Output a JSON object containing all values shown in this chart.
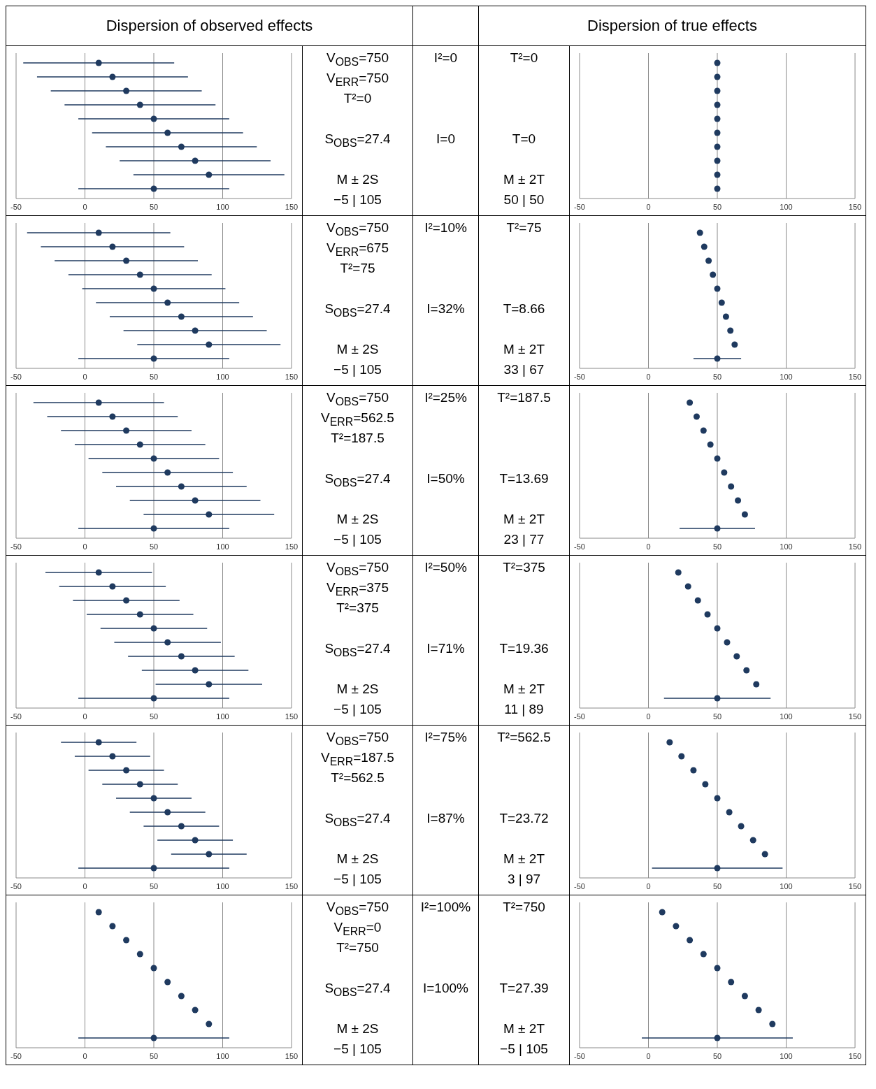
{
  "chart_data": [
    {
      "type": "other",
      "title": "Dispersion of observed effects"
    },
    {
      "type": "other",
      "title": "Dispersion of true effects"
    },
    {
      "type": "scatter",
      "orientation": "horizontal",
      "categories": [
        null,
        null,
        null,
        null,
        null,
        null,
        null,
        null,
        null,
        null
      ],
      "xlim": [
        -50,
        150
      ],
      "xticks": [
        -50,
        0,
        50,
        100,
        150
      ],
      "grid": "x",
      "marker": "circle",
      "tick_labels": "x",
      "series": [
        {
          "color": "#1f3a5f",
          "values": [
            10,
            20,
            30,
            40,
            50,
            60,
            70,
            80,
            90,
            null
          ],
          "errors": [
            54.8,
            54.8,
            54.8,
            54.8,
            54.8,
            54.8,
            54.8,
            54.8,
            54.8,
            null
          ]
        },
        {
          "color": "#1f3a5f",
          "values": [
            null,
            null,
            null,
            null,
            null,
            null,
            null,
            null,
            null,
            50
          ],
          "errors": [
            null,
            null,
            null,
            null,
            null,
            null,
            null,
            null,
            null,
            54.8
          ]
        }
      ]
    },
    {
      "type": "other",
      "annotations": [
        "V$_{OBS}$=750",
        "V$_{ERR}$=750",
        "T²=0",
        "S$_{OBS}$=27.4",
        "M ± 2S",
        "−5 | 105"
      ]
    },
    {
      "type": "other",
      "annotations": [
        "I²=0",
        "I=0"
      ]
    },
    {
      "type": "other",
      "annotations": [
        "T²=0",
        "T=0",
        "M ± 2T",
        "50 | 50"
      ]
    },
    {
      "type": "scatter",
      "orientation": "horizontal",
      "categories": [
        null,
        null,
        null,
        null,
        null,
        null,
        null,
        null,
        null,
        null
      ],
      "xlim": [
        -50,
        150
      ],
      "xticks": [
        -50,
        0,
        50,
        100,
        150
      ],
      "grid": "x",
      "marker": "circle",
      "tick_labels": "x",
      "series": [
        {
          "color": "#1f3a5f",
          "values": [
            50,
            50,
            50,
            50,
            50,
            50,
            50,
            50,
            50,
            null
          ]
        },
        {
          "color": "#1f3a5f",
          "values": [
            null,
            null,
            null,
            null,
            null,
            null,
            null,
            null,
            null,
            50
          ]
        }
      ]
    },
    {
      "type": "scatter",
      "orientation": "horizontal",
      "categories": [
        null,
        null,
        null,
        null,
        null,
        null,
        null,
        null,
        null,
        null
      ],
      "xlim": [
        -50,
        150
      ],
      "xticks": [
        -50,
        0,
        50,
        100,
        150
      ],
      "grid": "x",
      "marker": "circle",
      "tick_labels": "x",
      "series": [
        {
          "color": "#1f3a5f",
          "values": [
            10,
            20,
            30,
            40,
            50,
            60,
            70,
            80,
            90,
            null
          ],
          "errors": [
            52.0,
            52.0,
            52.0,
            52.0,
            52.0,
            52.0,
            52.0,
            52.0,
            52.0,
            null
          ]
        },
        {
          "color": "#1f3a5f",
          "values": [
            null,
            null,
            null,
            null,
            null,
            null,
            null,
            null,
            null,
            50
          ],
          "errors": [
            null,
            null,
            null,
            null,
            null,
            null,
            null,
            null,
            null,
            54.8
          ]
        }
      ]
    },
    {
      "type": "other",
      "annotations": [
        "V$_{OBS}$=750",
        "V$_{ERR}$=675",
        "T²=75",
        "S$_{OBS}$=27.4",
        "M ± 2S",
        "−5 | 105"
      ]
    },
    {
      "type": "other",
      "annotations": [
        "I²=10%",
        "I=32%"
      ]
    },
    {
      "type": "other",
      "annotations": [
        "T²=75",
        "T=8.66",
        "M ± 2T",
        "33 | 67"
      ]
    },
    {
      "type": "scatter",
      "orientation": "horizontal",
      "categories": [
        null,
        null,
        null,
        null,
        null,
        null,
        null,
        null,
        null,
        null
      ],
      "xlim": [
        -50,
        150
      ],
      "xticks": [
        -50,
        0,
        50,
        100,
        150
      ],
      "grid": "x",
      "marker": "circle",
      "tick_labels": "x",
      "series": [
        {
          "color": "#1f3a5f",
          "values": [
            37.4,
            40.5,
            43.7,
            46.8,
            50,
            53.2,
            56.3,
            59.5,
            62.6,
            null
          ]
        },
        {
          "color": "#1f3a5f",
          "values": [
            null,
            null,
            null,
            null,
            null,
            null,
            null,
            null,
            null,
            50
          ],
          "errors": [
            null,
            null,
            null,
            null,
            null,
            null,
            null,
            null,
            null,
            17.3
          ]
        }
      ]
    },
    {
      "type": "scatter",
      "orientation": "horizontal",
      "categories": [
        null,
        null,
        null,
        null,
        null,
        null,
        null,
        null,
        null,
        null
      ],
      "xlim": [
        -50,
        150
      ],
      "xticks": [
        -50,
        0,
        50,
        100,
        150
      ],
      "grid": "x",
      "marker": "circle",
      "tick_labels": "x",
      "series": [
        {
          "color": "#1f3a5f",
          "values": [
            10,
            20,
            30,
            40,
            50,
            60,
            70,
            80,
            90,
            null
          ],
          "errors": [
            47.4,
            47.4,
            47.4,
            47.4,
            47.4,
            47.4,
            47.4,
            47.4,
            47.4,
            null
          ]
        },
        {
          "color": "#1f3a5f",
          "values": [
            null,
            null,
            null,
            null,
            null,
            null,
            null,
            null,
            null,
            50
          ],
          "errors": [
            null,
            null,
            null,
            null,
            null,
            null,
            null,
            null,
            null,
            54.8
          ]
        }
      ]
    },
    {
      "type": "other",
      "annotations": [
        "V$_{OBS}$=750",
        "V$_{ERR}$=562.5",
        "T²=187.5",
        "S$_{OBS}$=27.4",
        "M ± 2S",
        "−5 | 105"
      ]
    },
    {
      "type": "other",
      "annotations": [
        "I²=25%",
        "I=50%"
      ]
    },
    {
      "type": "other",
      "annotations": [
        "T²=187.5",
        "T=13.69",
        "M ± 2T",
        "23 | 77"
      ]
    },
    {
      "type": "scatter",
      "orientation": "horizontal",
      "categories": [
        null,
        null,
        null,
        null,
        null,
        null,
        null,
        null,
        null,
        null
      ],
      "xlim": [
        -50,
        150
      ],
      "xticks": [
        -50,
        0,
        50,
        100,
        150
      ],
      "grid": "x",
      "marker": "circle",
      "tick_labels": "x",
      "series": [
        {
          "color": "#1f3a5f",
          "values": [
            30,
            35,
            40,
            45,
            50,
            55,
            60,
            65,
            70,
            null
          ]
        },
        {
          "color": "#1f3a5f",
          "values": [
            null,
            null,
            null,
            null,
            null,
            null,
            null,
            null,
            null,
            50
          ],
          "errors": [
            null,
            null,
            null,
            null,
            null,
            null,
            null,
            null,
            null,
            27.4
          ]
        }
      ]
    },
    {
      "type": "scatter",
      "orientation": "horizontal",
      "categories": [
        null,
        null,
        null,
        null,
        null,
        null,
        null,
        null,
        null,
        null
      ],
      "xlim": [
        -50,
        150
      ],
      "xticks": [
        -50,
        0,
        50,
        100,
        150
      ],
      "grid": "x",
      "marker": "circle",
      "tick_labels": "x",
      "series": [
        {
          "color": "#1f3a5f",
          "values": [
            10,
            20,
            30,
            40,
            50,
            60,
            70,
            80,
            90,
            null
          ],
          "errors": [
            38.7,
            38.7,
            38.7,
            38.7,
            38.7,
            38.7,
            38.7,
            38.7,
            38.7,
            null
          ]
        },
        {
          "color": "#1f3a5f",
          "values": [
            null,
            null,
            null,
            null,
            null,
            null,
            null,
            null,
            null,
            50
          ],
          "errors": [
            null,
            null,
            null,
            null,
            null,
            null,
            null,
            null,
            null,
            54.8
          ]
        }
      ]
    },
    {
      "type": "other",
      "annotations": [
        "V$_{OBS}$=750",
        "V$_{ERR}$=375",
        "T²=375",
        "S$_{OBS}$=27.4",
        "M ± 2S",
        "−5 | 105"
      ]
    },
    {
      "type": "other",
      "annotations": [
        "I²=50%",
        "I=71%"
      ]
    },
    {
      "type": "other",
      "annotations": [
        "T²=375",
        "T=19.36",
        "M ± 2T",
        "11 | 89"
      ]
    },
    {
      "type": "scatter",
      "orientation": "horizontal",
      "categories": [
        null,
        null,
        null,
        null,
        null,
        null,
        null,
        null,
        null,
        null
      ],
      "xlim": [
        -50,
        150
      ],
      "xticks": [
        -50,
        0,
        50,
        100,
        150
      ],
      "grid": "x",
      "marker": "circle",
      "tick_labels": "x",
      "series": [
        {
          "color": "#1f3a5f",
          "values": [
            21.7,
            28.8,
            35.9,
            42.9,
            50,
            57.1,
            64.1,
            71.2,
            78.3,
            null
          ]
        },
        {
          "color": "#1f3a5f",
          "values": [
            null,
            null,
            null,
            null,
            null,
            null,
            null,
            null,
            null,
            50
          ],
          "errors": [
            null,
            null,
            null,
            null,
            null,
            null,
            null,
            null,
            null,
            38.7
          ]
        }
      ]
    },
    {
      "type": "scatter",
      "orientation": "horizontal",
      "categories": [
        null,
        null,
        null,
        null,
        null,
        null,
        null,
        null,
        null,
        null
      ],
      "xlim": [
        -50,
        150
      ],
      "xticks": [
        -50,
        0,
        50,
        100,
        150
      ],
      "grid": "x",
      "marker": "circle",
      "tick_labels": "x",
      "series": [
        {
          "color": "#1f3a5f",
          "values": [
            10,
            20,
            30,
            40,
            50,
            60,
            70,
            80,
            90,
            null
          ],
          "errors": [
            27.4,
            27.4,
            27.4,
            27.4,
            27.4,
            27.4,
            27.4,
            27.4,
            27.4,
            null
          ]
        },
        {
          "color": "#1f3a5f",
          "values": [
            null,
            null,
            null,
            null,
            null,
            null,
            null,
            null,
            null,
            50
          ],
          "errors": [
            null,
            null,
            null,
            null,
            null,
            null,
            null,
            null,
            null,
            54.8
          ]
        }
      ]
    },
    {
      "type": "other",
      "annotations": [
        "V$_{OBS}$=750",
        "V$_{ERR}$=187.5",
        "T²=562.5",
        "S$_{OBS}$=27.4",
        "M ± 2S",
        "−5 | 105"
      ]
    },
    {
      "type": "other",
      "annotations": [
        "I²=75%",
        "I=87%"
      ]
    },
    {
      "type": "other",
      "annotations": [
        "T²=562.5",
        "T=23.72",
        "M ± 2T",
        "3 | 97"
      ]
    },
    {
      "type": "scatter",
      "orientation": "horizontal",
      "categories": [
        null,
        null,
        null,
        null,
        null,
        null,
        null,
        null,
        null,
        null
      ],
      "xlim": [
        -50,
        150
      ],
      "xticks": [
        -50,
        0,
        50,
        100,
        150
      ],
      "grid": "x",
      "marker": "circle",
      "tick_labels": "x",
      "series": [
        {
          "color": "#1f3a5f",
          "values": [
            15.4,
            24.0,
            32.7,
            41.3,
            50,
            58.7,
            67.3,
            76.0,
            84.6,
            null
          ]
        },
        {
          "color": "#1f3a5f",
          "values": [
            null,
            null,
            null,
            null,
            null,
            null,
            null,
            null,
            null,
            50
          ],
          "errors": [
            null,
            null,
            null,
            null,
            null,
            null,
            null,
            null,
            null,
            47.4
          ]
        }
      ]
    },
    {
      "type": "scatter",
      "orientation": "horizontal",
      "categories": [
        null,
        null,
        null,
        null,
        null,
        null,
        null,
        null,
        null,
        null
      ],
      "xlim": [
        -50,
        150
      ],
      "xticks": [
        -50,
        0,
        50,
        100,
        150
      ],
      "grid": "x",
      "marker": "circle",
      "tick_labels": "x",
      "series": [
        {
          "color": "#1f3a5f",
          "values": [
            10,
            20,
            30,
            40,
            50,
            60,
            70,
            80,
            90,
            null
          ]
        },
        {
          "color": "#1f3a5f",
          "values": [
            null,
            null,
            null,
            null,
            null,
            null,
            null,
            null,
            null,
            50
          ],
          "errors": [
            null,
            null,
            null,
            null,
            null,
            null,
            null,
            null,
            null,
            54.8
          ]
        }
      ]
    },
    {
      "type": "other",
      "annotations": [
        "V$_{OBS}$=750",
        "V$_{ERR}$=0",
        "T²=750",
        "S$_{OBS}$=27.4",
        "M ± 2S",
        "−5 | 105"
      ]
    },
    {
      "type": "other",
      "annotations": [
        "I²=100%",
        "I=100%"
      ]
    },
    {
      "type": "other",
      "annotations": [
        "T²=750",
        "T=27.39",
        "M ± 2T",
        "−5 | 105"
      ]
    },
    {
      "type": "scatter",
      "orientation": "horizontal",
      "categories": [
        null,
        null,
        null,
        null,
        null,
        null,
        null,
        null,
        null,
        null
      ],
      "xlim": [
        -50,
        150
      ],
      "xticks": [
        -50,
        0,
        50,
        100,
        150
      ],
      "grid": "x",
      "marker": "circle",
      "tick_labels": "x",
      "series": [
        {
          "color": "#1f3a5f",
          "values": [
            10,
            20,
            30,
            40,
            50,
            60,
            70,
            80,
            90,
            null
          ]
        },
        {
          "color": "#1f3a5f",
          "values": [
            null,
            null,
            null,
            null,
            null,
            null,
            null,
            null,
            null,
            50
          ],
          "errors": [
            null,
            null,
            null,
            null,
            null,
            null,
            null,
            null,
            null,
            54.8
          ]
        }
      ]
    }
  ]
}
